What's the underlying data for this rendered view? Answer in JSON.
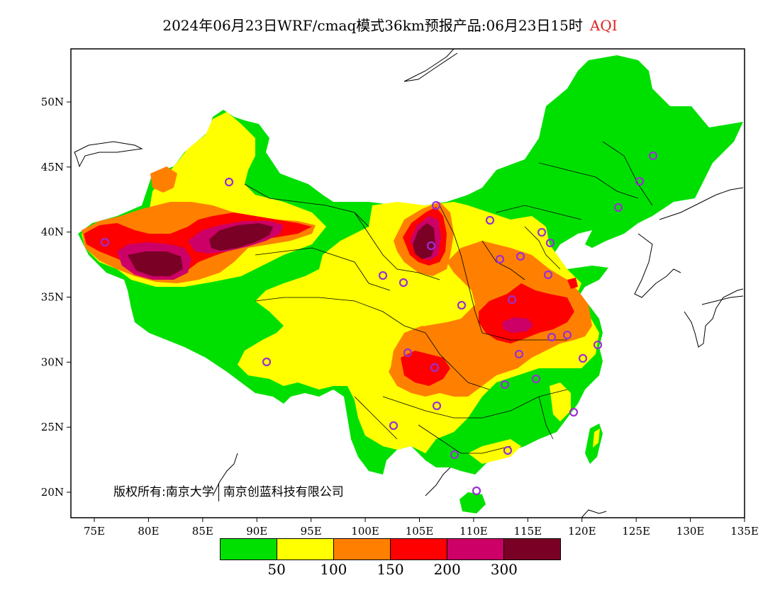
{
  "title": {
    "main": "2024年06月23日WRF/cmaq模式36km预报产品:06月23日15时",
    "variable": "AQI"
  },
  "axes": {
    "x_ticks": [
      "75E",
      "80E",
      "85E",
      "90E",
      "95E",
      "100E",
      "105E",
      "110E",
      "115E",
      "120E",
      "125E",
      "130E",
      "135E"
    ],
    "y_ticks": [
      "50N",
      "45N",
      "40N",
      "35N",
      "30N",
      "25N",
      "20N"
    ],
    "xlim": [
      73,
      135
    ],
    "ylim": [
      18,
      54
    ]
  },
  "copyright": {
    "owner": "版权所有:南京大学",
    "partner": "南京创蓝科技有限公司"
  },
  "legend": {
    "colors": [
      "#00e000",
      "#ffff00",
      "#ff8000",
      "#ff0000",
      "#cc0066",
      "#7a0026"
    ],
    "labels": [
      "50",
      "100",
      "150",
      "200",
      "300"
    ]
  },
  "map_colors": {
    "good": "#00e000",
    "moderate": "#ffff00",
    "usg": "#ff8000",
    "unhealthy": "#ff0000",
    "very_unhealthy": "#cc0066",
    "hazardous": "#7a0026",
    "station_marker": "#9a30d0"
  }
}
